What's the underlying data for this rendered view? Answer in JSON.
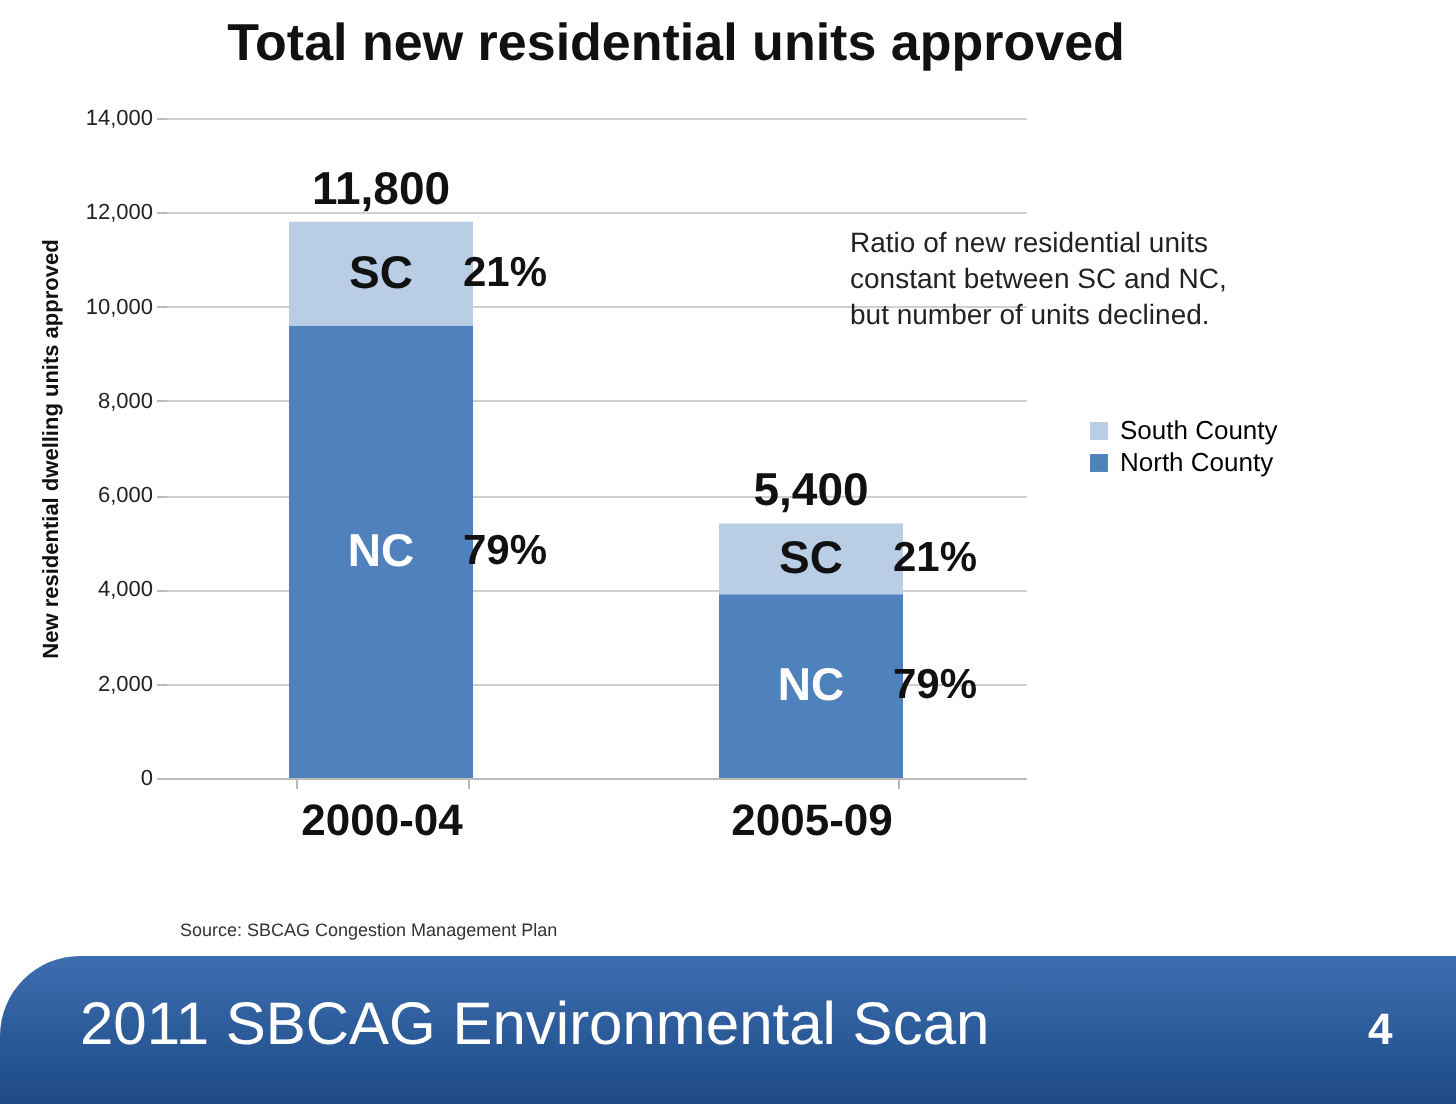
{
  "chart_data": {
    "type": "bar",
    "title": "Total new residential units approved",
    "ylabel": "New residential dwelling units approved",
    "categories": [
      "2000-04",
      "2005-09"
    ],
    "stacked": true,
    "series": [
      {
        "name": "North County",
        "color": "#4f81bd",
        "values": [
          9600,
          3900
        ]
      },
      {
        "name": "South County",
        "color": "#b9cde5",
        "values": [
          2200,
          1500
        ]
      }
    ],
    "totals": [
      "11,800",
      "5,400"
    ],
    "ylim": [
      0,
      14000
    ],
    "yticks": [
      {
        "value": 0,
        "label": "0"
      },
      {
        "value": 2000,
        "label": "2,000"
      },
      {
        "value": 4000,
        "label": "4,000"
      },
      {
        "value": 6000,
        "label": "6,000"
      },
      {
        "value": 8000,
        "label": "8,000"
      },
      {
        "value": 10000,
        "label": "10,000"
      },
      {
        "value": 12000,
        "label": "12,000"
      },
      {
        "value": 14000,
        "label": "14,000"
      }
    ],
    "grid": "y",
    "legend": "right",
    "annotations": [
      "SC",
      "21%",
      "NC",
      "79%",
      "SC",
      "21%",
      "NC",
      "79%",
      "Ratio of new residential units constant between SC and NC, but number of units declined.",
      "Source: SBCAG Congestion Management Plan",
      "2011 SBCAG Environmental Scan",
      "4"
    ]
  }
}
